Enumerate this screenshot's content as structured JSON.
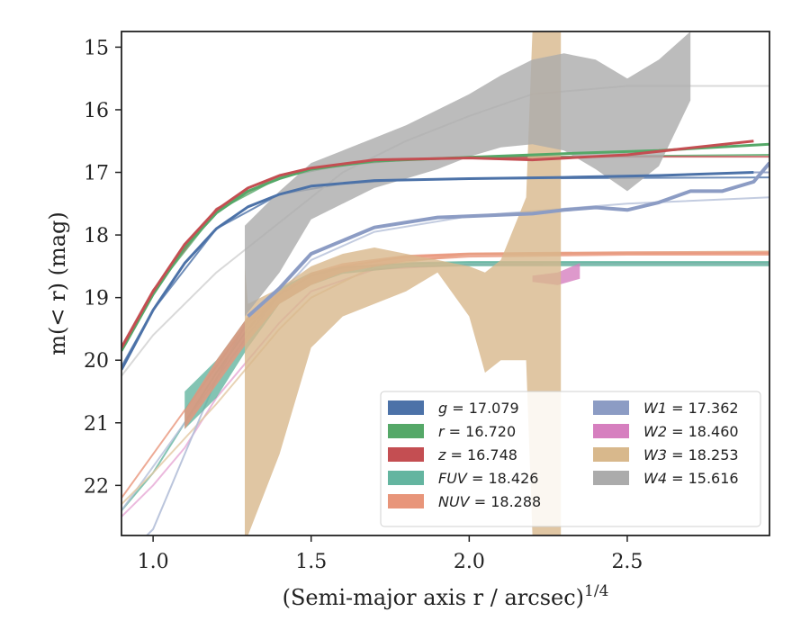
{
  "chart_data": {
    "type": "line",
    "xlabel": "(Semi-major axis r / arcsec)",
    "xlabel_exponent": "1/4",
    "ylabel": "m(< r) (mag)",
    "xlim": [
      0.9,
      2.95
    ],
    "ylim": [
      22.8,
      14.75
    ],
    "y_inverted": true,
    "grid": false,
    "legend_position": "lower-right",
    "x_ticks": [
      "1.0",
      "1.5",
      "2.0",
      "2.5"
    ],
    "y_ticks": [
      "15",
      "16",
      "17",
      "18",
      "19",
      "20",
      "21",
      "22"
    ],
    "series": [
      {
        "name": "g = 17.079",
        "symbol": "g",
        "value": "17.079",
        "color": "#4c72a8",
        "kind": "data",
        "x": [
          0.9,
          1.0,
          1.1,
          1.2,
          1.3,
          1.4,
          1.5,
          1.7,
          2.0,
          2.3,
          2.6,
          2.9
        ],
        "y": [
          20.15,
          19.2,
          18.45,
          17.9,
          17.55,
          17.35,
          17.22,
          17.13,
          17.1,
          17.08,
          17.05,
          17.0
        ]
      },
      {
        "name": "r = 16.720",
        "symbol": "r",
        "value": "16.720",
        "color": "#55a868",
        "kind": "data",
        "x": [
          0.9,
          1.0,
          1.1,
          1.2,
          1.3,
          1.4,
          1.5,
          1.7,
          2.0,
          2.3,
          2.6,
          2.95
        ],
        "y": [
          19.85,
          18.95,
          18.2,
          17.65,
          17.3,
          17.1,
          16.95,
          16.82,
          16.76,
          16.7,
          16.65,
          16.55
        ]
      },
      {
        "name": "z = 16.748",
        "symbol": "z",
        "value": "16.748",
        "color": "#c44e52",
        "kind": "data",
        "x": [
          0.9,
          1.0,
          1.1,
          1.2,
          1.3,
          1.4,
          1.5,
          1.7,
          2.0,
          2.2,
          2.5,
          2.9
        ],
        "y": [
          19.8,
          18.9,
          18.15,
          17.6,
          17.25,
          17.05,
          16.93,
          16.8,
          16.77,
          16.8,
          16.72,
          16.5
        ]
      },
      {
        "name": "FUV = 18.426",
        "symbol": "FUV",
        "value": "18.426",
        "color": "#64b5a0",
        "kind": "band",
        "x": [
          1.1,
          1.2,
          1.3,
          1.4,
          1.5,
          1.6,
          1.8,
          2.0,
          2.5,
          2.95
        ],
        "y_low": [
          20.5,
          20.0,
          19.3,
          18.85,
          18.6,
          18.5,
          18.45,
          18.43,
          18.43,
          18.43
        ],
        "y_high": [
          21.1,
          20.6,
          19.8,
          19.1,
          18.8,
          18.62,
          18.52,
          18.5,
          18.5,
          18.5
        ]
      },
      {
        "name": "NUV = 18.288",
        "symbol": "NUV",
        "value": "18.288",
        "color": "#e8957a",
        "kind": "band",
        "x": [
          1.1,
          1.2,
          1.3,
          1.4,
          1.5,
          1.6,
          1.8,
          2.0,
          2.5,
          2.95
        ],
        "y_low": [
          20.8,
          20.0,
          19.3,
          18.9,
          18.6,
          18.45,
          18.32,
          18.28,
          18.26,
          18.26
        ],
        "y_high": [
          21.1,
          20.4,
          19.7,
          19.1,
          18.8,
          18.6,
          18.42,
          18.36,
          18.33,
          18.33
        ]
      },
      {
        "name": "W1 = 17.362",
        "symbol": "W1",
        "value": "17.362",
        "color": "#8c9cc4",
        "kind": "data",
        "x": [
          1.3,
          1.4,
          1.5,
          1.7,
          1.9,
          2.1,
          2.2,
          2.3,
          2.4,
          2.5,
          2.6,
          2.7,
          2.8,
          2.9,
          2.95
        ],
        "y": [
          19.3,
          18.85,
          18.3,
          17.88,
          17.72,
          17.68,
          17.66,
          17.6,
          17.56,
          17.6,
          17.48,
          17.3,
          17.3,
          17.15,
          16.85
        ]
      },
      {
        "name": "W2 = 18.460",
        "symbol": "W2",
        "value": "18.460",
        "color": "#d67fbf",
        "kind": "band",
        "x": [
          2.2,
          2.28,
          2.35
        ],
        "y_low": [
          18.65,
          18.6,
          18.45
        ],
        "y_high": [
          18.75,
          18.8,
          18.7
        ]
      },
      {
        "name": "W3 = 18.253",
        "symbol": "W3",
        "value": "18.253",
        "color": "#d8b88c",
        "kind": "band",
        "x": [
          1.29,
          1.3,
          1.4,
          1.5,
          1.6,
          1.7,
          1.8,
          1.9,
          2.0,
          2.05,
          2.1,
          2.18,
          2.2,
          2.25,
          2.29
        ],
        "y_low": [
          18.5,
          19.1,
          18.85,
          18.5,
          18.3,
          18.2,
          18.3,
          18.4,
          18.5,
          18.6,
          18.4,
          17.4,
          14.75,
          14.75,
          14.75
        ],
        "y_high": [
          22.8,
          22.8,
          21.5,
          19.8,
          19.3,
          19.1,
          18.9,
          18.6,
          19.3,
          20.2,
          20.0,
          20.0,
          22.8,
          22.8,
          22.8
        ]
      },
      {
        "name": "W4 = 15.616",
        "symbol": "W4",
        "value": "15.616",
        "color": "#ababab",
        "kind": "band",
        "x": [
          1.29,
          1.4,
          1.5,
          1.6,
          1.7,
          1.8,
          1.9,
          2.0,
          2.1,
          2.2,
          2.3,
          2.4,
          2.5,
          2.6,
          2.7
        ],
        "y_low": [
          17.85,
          17.3,
          16.85,
          16.65,
          16.45,
          16.25,
          16.0,
          15.75,
          15.45,
          15.2,
          15.1,
          15.2,
          15.5,
          15.2,
          14.75
        ],
        "y_high": [
          19.3,
          18.6,
          17.75,
          17.5,
          17.25,
          17.1,
          16.95,
          16.75,
          16.6,
          16.55,
          16.65,
          16.95,
          17.3,
          16.9,
          15.85
        ]
      }
    ],
    "model_curves": [
      {
        "band": "g",
        "color": "#4c72a8",
        "x": [
          0.9,
          1.0,
          1.2,
          1.4,
          1.6,
          1.8,
          2.0,
          2.5,
          2.95
        ],
        "y": [
          20.1,
          19.2,
          17.9,
          17.35,
          17.18,
          17.12,
          17.1,
          17.09,
          17.08
        ]
      },
      {
        "band": "r",
        "color": "#55a868",
        "x": [
          0.9,
          1.0,
          1.2,
          1.4,
          1.6,
          1.8,
          2.0,
          2.5,
          2.95
        ],
        "y": [
          19.8,
          18.9,
          17.62,
          17.08,
          16.88,
          16.8,
          16.76,
          16.74,
          16.72
        ]
      },
      {
        "band": "z",
        "color": "#c44e52",
        "x": [
          0.9,
          1.0,
          1.2,
          1.4,
          1.6,
          1.8,
          2.0,
          2.5,
          2.95
        ],
        "y": [
          19.78,
          18.88,
          17.58,
          17.05,
          16.87,
          16.8,
          16.77,
          16.75,
          16.75
        ]
      },
      {
        "band": "FUV",
        "color": "#64b5a0",
        "x": [
          0.9,
          1.0,
          1.1,
          1.2,
          1.3,
          1.4,
          1.5,
          1.6,
          1.8,
          2.0,
          2.95
        ],
        "y": [
          22.4,
          21.8,
          21.0,
          20.2,
          19.5,
          18.95,
          18.65,
          18.52,
          18.45,
          18.43,
          18.43
        ]
      },
      {
        "band": "NUV",
        "color": "#e8957a",
        "x": [
          0.9,
          1.0,
          1.1,
          1.2,
          1.3,
          1.4,
          1.5,
          1.6,
          1.8,
          2.0,
          2.95
        ],
        "y": [
          22.2,
          21.5,
          20.8,
          20.1,
          19.4,
          18.95,
          18.65,
          18.5,
          18.35,
          18.3,
          18.29
        ]
      },
      {
        "band": "W1",
        "color": "#b4bfd8",
        "x": [
          0.9,
          1.0,
          1.1,
          1.2,
          1.3,
          1.4,
          1.5,
          1.7,
          2.0,
          2.5,
          2.95
        ],
        "y": [
          22.4,
          21.7,
          21.0,
          20.3,
          19.6,
          18.95,
          18.4,
          17.95,
          17.7,
          17.5,
          17.4
        ]
      },
      {
        "band": "W2",
        "color": "#e6a8d4",
        "x": [
          0.9,
          1.0,
          1.1,
          1.2,
          1.3,
          1.4,
          1.5,
          1.7,
          2.0,
          2.5,
          2.95
        ],
        "y": [
          22.5,
          22.0,
          21.4,
          20.6,
          20.0,
          19.4,
          18.9,
          18.55,
          18.47,
          18.46,
          18.46
        ]
      },
      {
        "band": "W3",
        "color": "#e2c8a3",
        "x": [
          0.9,
          1.0,
          1.2,
          1.3,
          1.4,
          1.5,
          1.7,
          2.0,
          2.95
        ],
        "y": [
          22.3,
          21.8,
          20.7,
          20.1,
          19.5,
          19.0,
          18.5,
          18.3,
          18.26
        ]
      },
      {
        "band": "W4",
        "color": "#cfcfcf",
        "x": [
          0.9,
          1.0,
          1.2,
          1.4,
          1.6,
          1.8,
          2.0,
          2.2,
          2.5,
          2.95
        ],
        "y": [
          20.25,
          19.6,
          18.6,
          17.8,
          17.0,
          16.5,
          16.1,
          15.75,
          15.62,
          15.62
        ]
      }
    ],
    "extra_lines": [
      {
        "color": "#b4bfd8",
        "x": [
          0.98,
          1.0,
          1.05,
          1.1,
          1.2,
          1.3
        ],
        "y": [
          22.8,
          22.7,
          22.1,
          21.5,
          20.3,
          19.35
        ]
      },
      {
        "color": "#8c9cc4",
        "x": [
          2.95,
          2.9
        ],
        "y": [
          17.0,
          17.0
        ]
      }
    ]
  }
}
